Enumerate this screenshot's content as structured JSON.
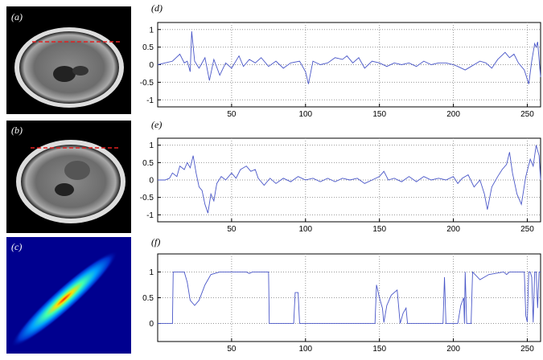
{
  "image_panels": [
    {
      "label": "(a)"
    },
    {
      "label": "(b)"
    },
    {
      "label": "(c)"
    }
  ],
  "chart_data": [
    {
      "type": "line",
      "label": "(d)",
      "color": "#4a57c8",
      "grid": true,
      "xlim": [
        0,
        259
      ],
      "ylim": [
        -1.2,
        1.2
      ],
      "xticks": [
        50,
        100,
        150,
        200,
        250
      ],
      "yticks": [
        -1,
        -0.5,
        0,
        0.5,
        1
      ],
      "x": [
        0,
        5,
        10,
        15,
        18,
        20,
        22,
        23,
        25,
        28,
        32,
        35,
        38,
        42,
        46,
        50,
        55,
        58,
        62,
        66,
        70,
        75,
        80,
        85,
        90,
        96,
        100,
        102,
        105,
        110,
        115,
        120,
        125,
        128,
        132,
        136,
        140,
        145,
        150,
        155,
        160,
        165,
        170,
        175,
        180,
        185,
        190,
        195,
        200,
        203,
        208,
        212,
        218,
        222,
        226,
        230,
        235,
        238,
        241,
        244,
        248,
        251,
        253,
        255,
        256,
        257,
        259
      ],
      "values": [
        0,
        0.05,
        0.1,
        0.3,
        0.05,
        0.1,
        -0.2,
        0.95,
        0.1,
        -0.1,
        0.2,
        -0.45,
        0.15,
        -0.3,
        0.05,
        -0.1,
        0.25,
        -0.05,
        0.15,
        0.05,
        0.2,
        -0.05,
        0.1,
        -0.1,
        0.05,
        0.1,
        -0.2,
        -0.55,
        0.1,
        0,
        0.05,
        0.2,
        0.15,
        0.25,
        0.05,
        0.2,
        -0.1,
        0.1,
        0.05,
        -0.05,
        0.05,
        0,
        0.05,
        -0.05,
        0.1,
        0,
        0.05,
        0.05,
        0,
        -0.05,
        -0.15,
        -0.05,
        0.1,
        0.05,
        -0.1,
        0.15,
        0.35,
        0.2,
        0.3,
        0.05,
        -0.15,
        -0.55,
        0.1,
        0.6,
        0.5,
        0.65,
        -0.35
      ]
    },
    {
      "type": "line",
      "label": "(e)",
      "color": "#4a57c8",
      "grid": true,
      "xlim": [
        0,
        259
      ],
      "ylim": [
        -1.2,
        1.2
      ],
      "xticks": [
        50,
        100,
        150,
        200,
        250
      ],
      "yticks": [
        -1,
        -0.5,
        0,
        0.5,
        1
      ],
      "x": [
        0,
        5,
        8,
        10,
        13,
        15,
        18,
        20,
        22,
        24,
        26,
        28,
        30,
        32,
        34,
        36,
        38,
        40,
        43,
        46,
        50,
        53,
        56,
        60,
        63,
        66,
        68,
        72,
        76,
        80,
        85,
        90,
        95,
        100,
        105,
        110,
        115,
        120,
        125,
        130,
        135,
        140,
        145,
        150,
        153,
        156,
        160,
        165,
        170,
        175,
        180,
        185,
        190,
        195,
        200,
        203,
        206,
        210,
        214,
        218,
        221,
        223,
        226,
        230,
        233,
        236,
        238,
        240,
        243,
        246,
        249,
        252,
        254,
        256,
        258,
        259
      ],
      "values": [
        0,
        0,
        0.05,
        0.2,
        0.1,
        0.4,
        0.3,
        0.5,
        0.35,
        0.7,
        0.2,
        -0.2,
        -0.3,
        -0.7,
        -0.95,
        -0.4,
        -0.6,
        -0.1,
        0.1,
        0,
        0.2,
        0.05,
        0.3,
        0.4,
        0.25,
        0.3,
        0.05,
        -0.15,
        0.05,
        -0.1,
        0.05,
        -0.05,
        0.1,
        0,
        0.05,
        -0.05,
        0.05,
        -0.05,
        0.05,
        0,
        0.05,
        -0.1,
        0,
        0.1,
        0.25,
        0,
        0.05,
        -0.05,
        0.1,
        -0.05,
        0.1,
        0,
        0.05,
        0,
        0.1,
        -0.1,
        0.05,
        0.15,
        -0.2,
        0,
        -0.4,
        -0.85,
        -0.2,
        0.1,
        0.3,
        0.45,
        0.8,
        0.2,
        -0.4,
        -0.7,
        0.1,
        0.6,
        0.4,
        1,
        0.7,
        0
      ]
    },
    {
      "type": "line",
      "label": "(f)",
      "color": "#4a57c8",
      "grid": true,
      "xlim": [
        0,
        259
      ],
      "ylim": [
        -0.35,
        1.35
      ],
      "xticks": [
        50,
        100,
        150,
        200,
        250
      ],
      "yticks": [
        0,
        0.5,
        1
      ],
      "x": [
        0,
        5,
        10,
        10.5,
        18,
        20,
        22,
        25,
        28,
        32,
        36,
        42,
        60,
        62,
        64,
        75,
        75.5,
        92,
        93,
        95,
        96,
        147,
        148,
        150,
        152,
        153,
        155,
        158,
        162,
        164,
        166,
        168,
        169,
        193,
        194,
        195,
        203,
        205,
        207,
        207.5,
        208,
        209,
        212,
        213,
        218,
        224,
        234,
        236,
        238,
        248,
        249,
        250,
        251,
        252,
        253,
        254,
        255,
        256,
        257,
        258,
        259
      ],
      "values": [
        0,
        0,
        0,
        1,
        1,
        0.8,
        0.45,
        0.35,
        0.45,
        0.75,
        0.95,
        1,
        1,
        0.97,
        1,
        1,
        0,
        0,
        0.6,
        0.6,
        0,
        0,
        0.75,
        0.5,
        0.3,
        0.02,
        0.35,
        0.55,
        0.65,
        0,
        0.2,
        0.3,
        0,
        0,
        0.9,
        0,
        0,
        0.35,
        0.5,
        0,
        1,
        0,
        0,
        1,
        0.85,
        0.95,
        1,
        0.95,
        1,
        1,
        0.15,
        0.03,
        1,
        1,
        0.9,
        0.02,
        1,
        1,
        0.3,
        1,
        1
      ]
    }
  ]
}
